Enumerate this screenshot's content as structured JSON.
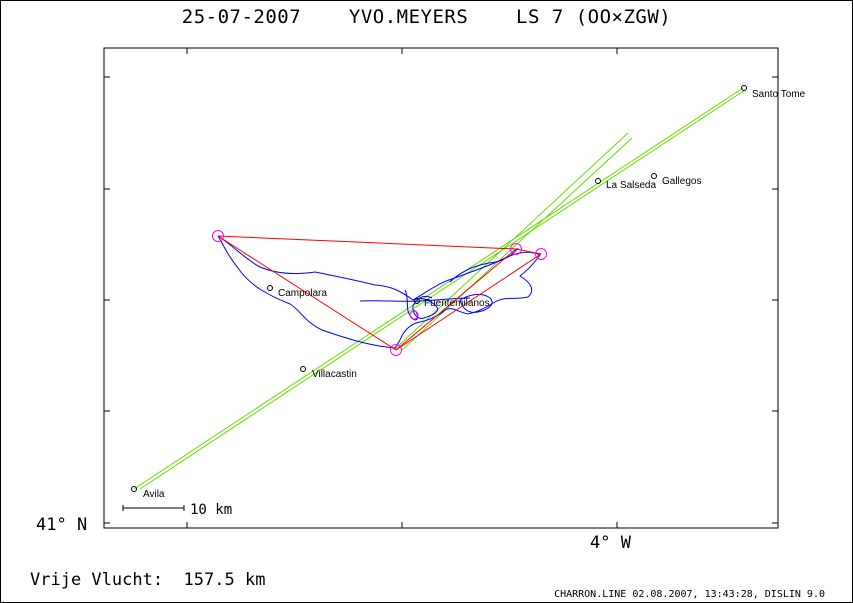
{
  "title": "25-07-2007    YVO.MEYERS    LS 7 (OO×ZGW)",
  "axis": {
    "lat_label": "41° N",
    "lon_label": "4° W"
  },
  "scale_bar": {
    "label": "10 km"
  },
  "distance": {
    "label": "Vrije Vlucht:",
    "value": "157.5 km"
  },
  "footer": "CHARRON.LINE 02.08.2007, 13:43:28, DISLIN 9.0",
  "colors": {
    "track": "#0000ff",
    "triangle": "#ff0000",
    "turnpoint": "#ff00ff",
    "sector": "#66dd00",
    "frame": "#000000"
  },
  "places": [
    {
      "name": "Santo Tome"
    },
    {
      "name": "Gallegos"
    },
    {
      "name": "La Salseda"
    },
    {
      "name": "Campolara"
    },
    {
      "name": "Fuentemilanos"
    },
    {
      "name": "Villacastin"
    },
    {
      "name": "Avila"
    }
  ]
}
